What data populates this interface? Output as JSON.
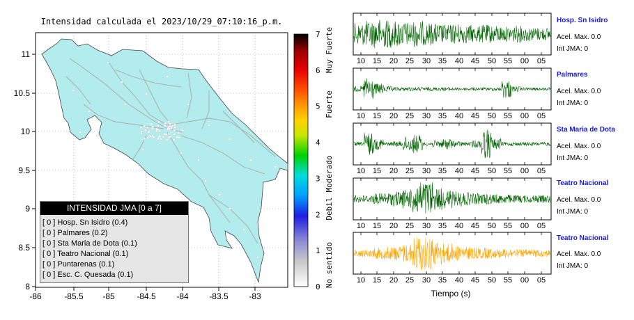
{
  "map": {
    "title": "Intensidad calculada el 2023/10/29_07:10:16_p.m.",
    "x_ticks": [
      "-86",
      "-85.5",
      "-85",
      "-84.5",
      "-84",
      "-83.5",
      "-83"
    ],
    "y_ticks": [
      "11",
      "10.5",
      "10",
      "9.5",
      "9",
      "8.5",
      "8"
    ],
    "land_color": "#b3ecec",
    "road_color": "#a8a8a8"
  },
  "colorbar": {
    "ticks": [
      "7",
      "6",
      "5",
      "4",
      "3",
      "2",
      "1",
      "0"
    ],
    "labels": [
      "Muy Fuerte",
      "Fuerte",
      "Moderado",
      "Debil",
      "No sentido"
    ]
  },
  "legend": {
    "title": "INTENSIDAD JMA [0 a 7]",
    "items": [
      "[ 0 ]  Hosp. Sn Isidro (0.4)",
      "[ 0 ]  Palmares (0.2)",
      "[ 0 ]  Sta Maria de Dota (0.1)",
      "[ 0 ]  Teatro Nacional (0.1)",
      "[ 0 ]  Puntarenas (0.1)",
      "[ 0 ]  Esc. C. Quesada (0.1)"
    ]
  },
  "traces": {
    "time_ticks": [
      "10",
      "15",
      "20",
      "25",
      "30",
      "35",
      "40",
      "45",
      "50",
      "55",
      "00",
      "05"
    ],
    "xlabel": "Tiempo (s)",
    "stations": [
      {
        "name": "Hosp. Sn Isidro",
        "acel": "Acel. Max. 0.0",
        "jma": "Int JMA: 0",
        "color": "#006400"
      },
      {
        "name": "Palmares",
        "acel": "Acel. Max. 0.0",
        "jma": "Int JMA: 0",
        "color": "#006400"
      },
      {
        "name": "Sta Maria de Dota",
        "acel": "Acel. Max. 0.0",
        "jma": "Int JMA: 0",
        "color": "#006400"
      },
      {
        "name": "Teatro Nacional",
        "acel": "Acel. Max. 0.0",
        "jma": "Int JMA: 0",
        "color": "#006400"
      },
      {
        "name": "Teatro Nacional",
        "acel": "Acel. Max. 0.0",
        "jma": "Int JMA: 0",
        "color": "#ffa500"
      }
    ]
  },
  "chart_data": [
    {
      "type": "heatmap",
      "title": "Intensidad calculada el 2023/10/29_07:10:16_p.m.",
      "xlim": [
        -86,
        -82.6
      ],
      "ylim": [
        8,
        11.3
      ],
      "colorbar_range": [
        0,
        7
      ],
      "stations_intensity": [
        {
          "name": "Hosp. Sn Isidro",
          "jma": 0,
          "value": 0.4
        },
        {
          "name": "Palmares",
          "jma": 0,
          "value": 0.2
        },
        {
          "name": "Sta Maria de Dota",
          "jma": 0,
          "value": 0.1
        },
        {
          "name": "Teatro Nacional",
          "jma": 0,
          "value": 0.1
        },
        {
          "name": "Puntarenas",
          "jma": 0,
          "value": 0.1
        },
        {
          "name": "Esc. C. Quesada",
          "jma": 0,
          "value": 0.1
        }
      ]
    },
    {
      "type": "line",
      "xlabel": "Tiempo (s)",
      "series": [
        {
          "name": "Hosp. Sn Isidro",
          "envelope": [
            0.6,
            0.7,
            0.8,
            0.75,
            0.7,
            0.65,
            0.7,
            0.6,
            0.55,
            0.5,
            0.55,
            0.5,
            0.45,
            0.5,
            0.45,
            0.4,
            0.45,
            0.4,
            0.35,
            0.35
          ]
        },
        {
          "name": "Palmares",
          "envelope": [
            0.15,
            0.6,
            0.3,
            0.15,
            0.1,
            0.1,
            0.1,
            0.1,
            0.1,
            0.1,
            0.08,
            0.08,
            0.08,
            0.08,
            0.1,
            0.5,
            0.15,
            0.08,
            0.08,
            0.08
          ]
        },
        {
          "name": "Sta Maria de Dota",
          "envelope": [
            0.1,
            0.6,
            0.3,
            0.1,
            0.15,
            0.4,
            0.5,
            0.1,
            0.2,
            0.3,
            0.15,
            0.1,
            0.2,
            0.8,
            0.3,
            0.1,
            0.1,
            0.1,
            0.1,
            0.1
          ]
        },
        {
          "name": "Teatro Nacional",
          "envelope": [
            0.2,
            0.2,
            0.3,
            0.35,
            0.4,
            0.5,
            0.9,
            0.95,
            0.6,
            0.5,
            0.4,
            0.35,
            0.3,
            0.3,
            0.25,
            0.25,
            0.2,
            0.2,
            0.2,
            0.2
          ]
        },
        {
          "name": "Teatro Nacional",
          "envelope": [
            0.2,
            0.2,
            0.3,
            0.35,
            0.4,
            0.5,
            0.95,
            0.9,
            0.65,
            0.55,
            0.4,
            0.35,
            0.3,
            0.3,
            0.25,
            0.25,
            0.2,
            0.2,
            0.2,
            0.2
          ]
        }
      ]
    }
  ]
}
